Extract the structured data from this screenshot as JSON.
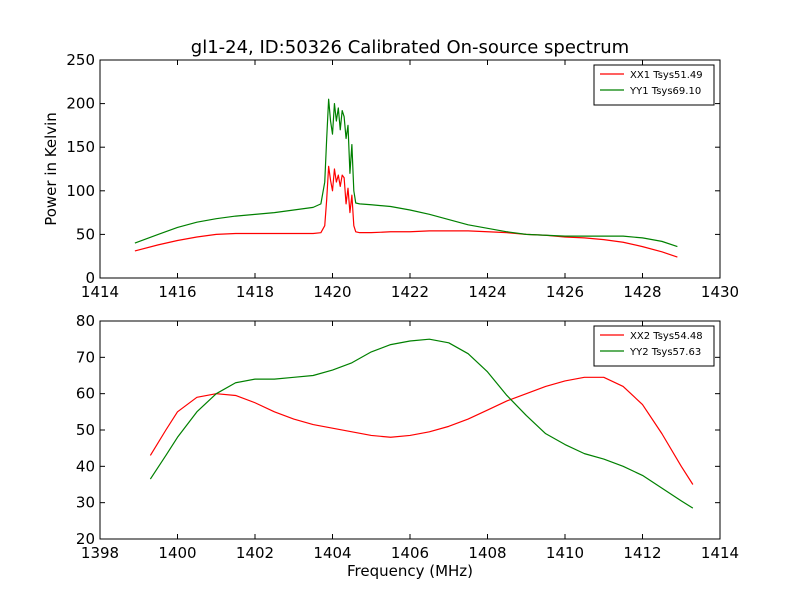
{
  "figure": {
    "title": "gl1-24, ID:50326 Calibrated On-source spectrum"
  },
  "chart_data": [
    {
      "type": "line",
      "title": "gl1-24, ID:50326 Calibrated On-source spectrum",
      "xlabel": "",
      "ylabel": "Power in Kelvin",
      "xlim": [
        1414,
        1430
      ],
      "ylim": [
        0,
        250
      ],
      "xticks": [
        1414,
        1416,
        1418,
        1420,
        1422,
        1424,
        1426,
        1428,
        1430
      ],
      "yticks": [
        0,
        50,
        100,
        150,
        200,
        250
      ],
      "legend_position": "top-right",
      "grid": false,
      "series": [
        {
          "name": "XX1 Tsys51.49",
          "color": "#ff0000",
          "x": [
            1414.9,
            1415.5,
            1416.0,
            1416.5,
            1417.0,
            1417.5,
            1418.0,
            1418.5,
            1419.0,
            1419.5,
            1419.7,
            1419.8,
            1419.85,
            1419.9,
            1419.95,
            1420.0,
            1420.05,
            1420.1,
            1420.15,
            1420.2,
            1420.25,
            1420.3,
            1420.35,
            1420.4,
            1420.45,
            1420.5,
            1420.55,
            1420.6,
            1420.7,
            1421.0,
            1421.5,
            1422.0,
            1422.5,
            1423.0,
            1423.5,
            1424.0,
            1424.5,
            1425.0,
            1425.5,
            1426.0,
            1426.5,
            1427.0,
            1427.5,
            1428.0,
            1428.5,
            1428.9
          ],
          "y": [
            31,
            38,
            43,
            47,
            50,
            51,
            51,
            51,
            51,
            51,
            52,
            60,
            90,
            128,
            112,
            100,
            125,
            110,
            118,
            105,
            118,
            115,
            85,
            103,
            75,
            95,
            60,
            53,
            52,
            52,
            53,
            53,
            54,
            54,
            54,
            53,
            52,
            50,
            49,
            47,
            46,
            44,
            41,
            36,
            30,
            24
          ]
        },
        {
          "name": "YY1 Tsys69.10",
          "color": "#008000",
          "x": [
            1414.9,
            1415.5,
            1416.0,
            1416.5,
            1417.0,
            1417.5,
            1418.0,
            1418.5,
            1419.0,
            1419.5,
            1419.7,
            1419.8,
            1419.85,
            1419.9,
            1419.95,
            1420.0,
            1420.05,
            1420.1,
            1420.15,
            1420.2,
            1420.25,
            1420.3,
            1420.35,
            1420.4,
            1420.45,
            1420.5,
            1420.55,
            1420.6,
            1420.7,
            1421.0,
            1421.5,
            1422.0,
            1422.5,
            1423.0,
            1423.5,
            1424.0,
            1424.5,
            1425.0,
            1425.5,
            1426.0,
            1426.5,
            1427.0,
            1427.5,
            1428.0,
            1428.5,
            1428.9
          ],
          "y": [
            40,
            50,
            58,
            64,
            68,
            71,
            73,
            75,
            78,
            81,
            85,
            110,
            160,
            205,
            180,
            165,
            200,
            180,
            195,
            170,
            192,
            185,
            160,
            175,
            120,
            153,
            100,
            86,
            85,
            84,
            82,
            78,
            73,
            67,
            61,
            57,
            53,
            50,
            49,
            48,
            48,
            48,
            48,
            46,
            42,
            36
          ]
        }
      ]
    },
    {
      "type": "line",
      "title": "",
      "xlabel": "Frequency (MHz)",
      "ylabel": "",
      "xlim": [
        1398,
        1414
      ],
      "ylim": [
        20,
        80
      ],
      "xticks": [
        1398,
        1400,
        1402,
        1404,
        1406,
        1408,
        1410,
        1412,
        1414
      ],
      "yticks": [
        20,
        30,
        40,
        50,
        60,
        70,
        80
      ],
      "legend_position": "top-right",
      "grid": false,
      "series": [
        {
          "name": "XX2 Tsys54.48",
          "color": "#ff0000",
          "x": [
            1399.3,
            1399.7,
            1400.0,
            1400.5,
            1401.0,
            1401.5,
            1402.0,
            1402.5,
            1403.0,
            1403.5,
            1404.0,
            1404.5,
            1405.0,
            1405.5,
            1406.0,
            1406.5,
            1407.0,
            1407.5,
            1408.0,
            1408.5,
            1409.0,
            1409.5,
            1410.0,
            1410.5,
            1411.0,
            1411.5,
            1412.0,
            1412.5,
            1413.0,
            1413.3
          ],
          "y": [
            43,
            50,
            55,
            59,
            60,
            59.5,
            57.5,
            55,
            53,
            51.5,
            50.5,
            49.5,
            48.5,
            48,
            48.5,
            49.5,
            51,
            53,
            55.5,
            58,
            60,
            62,
            63.5,
            64.5,
            64.5,
            62,
            57,
            49,
            40,
            35
          ]
        },
        {
          "name": "YY2 Tsys57.63",
          "color": "#008000",
          "x": [
            1399.3,
            1399.7,
            1400.0,
            1400.5,
            1401.0,
            1401.5,
            1402.0,
            1402.5,
            1403.0,
            1403.5,
            1404.0,
            1404.5,
            1405.0,
            1405.5,
            1406.0,
            1406.5,
            1407.0,
            1407.5,
            1408.0,
            1408.5,
            1409.0,
            1409.5,
            1410.0,
            1410.5,
            1411.0,
            1411.5,
            1412.0,
            1412.5,
            1413.0,
            1413.3
          ],
          "y": [
            36.5,
            43,
            48,
            55,
            60,
            63,
            64,
            64,
            64.5,
            65,
            66.5,
            68.5,
            71.5,
            73.5,
            74.5,
            75,
            74,
            71,
            66,
            59.5,
            54,
            49,
            46,
            43.5,
            42,
            40,
            37.5,
            34,
            30.5,
            28.5
          ]
        }
      ]
    }
  ]
}
